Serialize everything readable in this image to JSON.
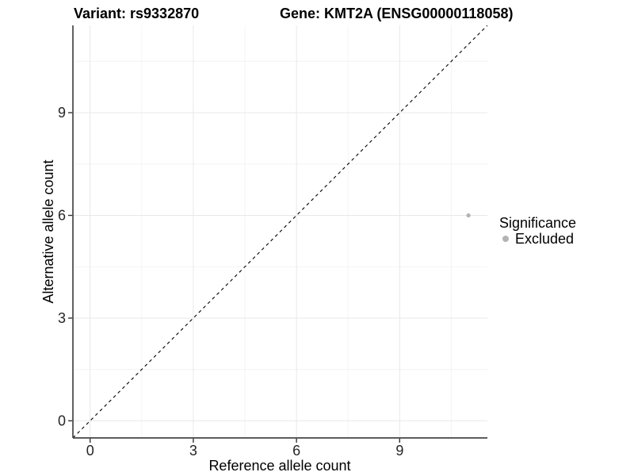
{
  "chart_data": {
    "type": "scatter",
    "titles": {
      "left": "Variant: rs9332870",
      "right": "Gene: KMT2A (ENSG00000118058)"
    },
    "xlabel": "Reference allele count",
    "ylabel": "Alternative allele count",
    "xlim": [
      -0.5,
      11.55
    ],
    "ylim": [
      -0.5,
      11.55
    ],
    "x_ticks": [
      0,
      3,
      6,
      9
    ],
    "y_ticks": [
      0,
      3,
      6,
      9
    ],
    "x_minor_ticks": [
      1.5,
      4.5,
      7.5,
      10.5
    ],
    "y_minor_ticks": [
      1.5,
      4.5,
      7.5,
      10.5
    ],
    "grid": true,
    "points": [
      {
        "x": 11,
        "y": 6,
        "significance": "Excluded"
      }
    ],
    "reference_line": {
      "type": "identity y=x",
      "style": "dashed",
      "from": [
        -0.5,
        -0.5
      ],
      "to": [
        11.55,
        11.55
      ]
    },
    "legend": {
      "title": "Significance",
      "position": "right",
      "items": [
        {
          "label": "Excluded",
          "color": "#b3b3b3"
        }
      ]
    },
    "colors": {
      "point": "#b3b3b3",
      "axis_line": "#464646",
      "tick_mark": "#333333",
      "tick_label": "#262626",
      "grid_major": "#e8e8e8",
      "grid_minor": "#f4f4f4",
      "reference_line": "#000000",
      "title_text": "#000000"
    }
  }
}
